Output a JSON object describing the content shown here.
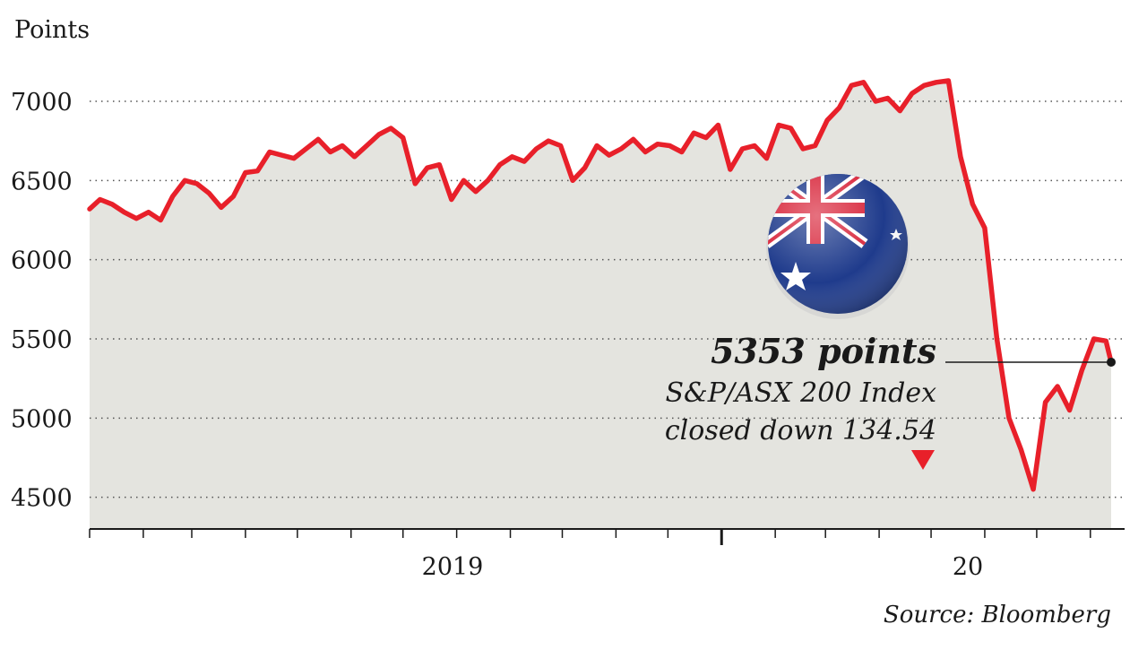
{
  "chart_data": {
    "type": "area",
    "ylabel": "Points",
    "ylim": [
      4300,
      7300
    ],
    "y_ticks": [
      4500,
      5000,
      5500,
      6000,
      6500,
      7000
    ],
    "x_tick_labels": [
      "2019",
      "20"
    ],
    "grid": "horizontal-dotted",
    "series": [
      {
        "name": "S&P/ASX 200 Index",
        "color": "#e8202a",
        "points": [
          [
            "2019-01-01",
            6320
          ],
          [
            "2019-01-07",
            6380
          ],
          [
            "2019-01-14",
            6350
          ],
          [
            "2019-01-21",
            6300
          ],
          [
            "2019-01-28",
            6260
          ],
          [
            "2019-02-04",
            6300
          ],
          [
            "2019-02-11",
            6250
          ],
          [
            "2019-02-18",
            6400
          ],
          [
            "2019-02-25",
            6500
          ],
          [
            "2019-03-04",
            6480
          ],
          [
            "2019-03-11",
            6420
          ],
          [
            "2019-03-18",
            6330
          ],
          [
            "2019-03-25",
            6400
          ],
          [
            "2019-04-01",
            6550
          ],
          [
            "2019-04-08",
            6560
          ],
          [
            "2019-04-15",
            6680
          ],
          [
            "2019-04-22",
            6660
          ],
          [
            "2019-04-29",
            6640
          ],
          [
            "2019-05-06",
            6700
          ],
          [
            "2019-05-13",
            6760
          ],
          [
            "2019-05-20",
            6680
          ],
          [
            "2019-05-27",
            6720
          ],
          [
            "2019-06-03",
            6650
          ],
          [
            "2019-06-10",
            6720
          ],
          [
            "2019-06-17",
            6790
          ],
          [
            "2019-06-24",
            6830
          ],
          [
            "2019-07-01",
            6770
          ],
          [
            "2019-07-08",
            6480
          ],
          [
            "2019-07-15",
            6580
          ],
          [
            "2019-07-22",
            6600
          ],
          [
            "2019-07-29",
            6380
          ],
          [
            "2019-08-05",
            6500
          ],
          [
            "2019-08-12",
            6430
          ],
          [
            "2019-08-19",
            6500
          ],
          [
            "2019-08-26",
            6600
          ],
          [
            "2019-09-02",
            6650
          ],
          [
            "2019-09-09",
            6620
          ],
          [
            "2019-09-16",
            6700
          ],
          [
            "2019-09-23",
            6750
          ],
          [
            "2019-09-30",
            6720
          ],
          [
            "2019-10-07",
            6500
          ],
          [
            "2019-10-14",
            6580
          ],
          [
            "2019-10-21",
            6720
          ],
          [
            "2019-10-28",
            6660
          ],
          [
            "2019-11-04",
            6700
          ],
          [
            "2019-11-11",
            6760
          ],
          [
            "2019-11-18",
            6680
          ],
          [
            "2019-11-25",
            6730
          ],
          [
            "2019-12-02",
            6720
          ],
          [
            "2019-12-09",
            6680
          ],
          [
            "2019-12-16",
            6800
          ],
          [
            "2019-12-23",
            6770
          ],
          [
            "2019-12-30",
            6850
          ],
          [
            "2020-01-06",
            6570
          ],
          [
            "2020-01-13",
            6700
          ],
          [
            "2020-01-20",
            6720
          ],
          [
            "2020-01-27",
            6640
          ],
          [
            "2020-02-03",
            6850
          ],
          [
            "2020-02-10",
            6830
          ],
          [
            "2020-02-17",
            6700
          ],
          [
            "2020-02-24",
            6720
          ],
          [
            "2020-03-02",
            6880
          ],
          [
            "2020-03-09",
            6960
          ],
          [
            "2020-03-16",
            7100
          ],
          [
            "2020-03-23",
            7120
          ],
          [
            "2020-03-30",
            7000
          ],
          [
            "2020-04-06",
            7020
          ],
          [
            "2020-04-13",
            6940
          ],
          [
            "2020-04-20",
            7050
          ],
          [
            "2020-04-27",
            7100
          ],
          [
            "2020-05-04",
            7120
          ],
          [
            "2020-05-11",
            7130
          ],
          [
            "2020-05-18",
            6650
          ],
          [
            "2020-05-25",
            6350
          ],
          [
            "2020-06-01",
            6200
          ],
          [
            "2020-06-08",
            5500
          ],
          [
            "2020-06-15",
            5000
          ],
          [
            "2020-06-22",
            4800
          ],
          [
            "2020-06-29",
            4550
          ],
          [
            "2020-07-06",
            5100
          ],
          [
            "2020-07-13",
            5200
          ],
          [
            "2020-07-20",
            5050
          ],
          [
            "2020-07-27",
            5300
          ],
          [
            "2020-08-03",
            5500
          ],
          [
            "2020-08-10",
            5487
          ],
          [
            "2020-08-13",
            5353
          ]
        ]
      }
    ],
    "annotations": [
      "5353 points",
      "S&P/ASX 200 Index",
      "closed down 134.54"
    ],
    "source": "Source: Bloomberg",
    "colors": {
      "line": "#e8202a",
      "area": "#e4e4df",
      "arrow": "#e8202a"
    }
  }
}
